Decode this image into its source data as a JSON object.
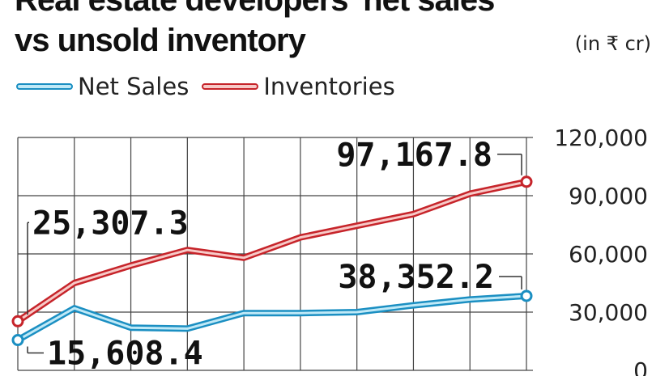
{
  "header": {
    "title_line1": "Real estate developers' net sales",
    "title_line2": "vs unsold inventory",
    "unit": "(in ₹ cr)"
  },
  "legend": [
    {
      "label": "Net Sales",
      "color": "#1b8fc2"
    },
    {
      "label": "Inventories",
      "color": "#c6242a"
    }
  ],
  "chart_data": {
    "type": "line",
    "title": "Real estate developers' net sales vs unsold inventory",
    "unit": "(in ₹ cr)",
    "ylim": [
      0,
      120000
    ],
    "y_ticks": [
      "0",
      "30,000",
      "60,000",
      "90,000",
      "120,000"
    ],
    "y_tick_values": [
      0,
      30000,
      60000,
      90000,
      120000
    ],
    "x": [
      1,
      2,
      3,
      4,
      5,
      6,
      7,
      8,
      9,
      10
    ],
    "grid": true,
    "legend_position": "top-left",
    "series": [
      {
        "name": "Net Sales",
        "color": "#1b8fc2",
        "fill": "#bfe9f7",
        "values": [
          15608.4,
          32000,
          22000,
          21500,
          29500,
          29500,
          30000,
          33500,
          36500,
          38352.2
        ]
      },
      {
        "name": "Inventories",
        "color": "#c6242a",
        "fill": "#f7c9c7",
        "values": [
          25307.3,
          45000,
          54000,
          62000,
          58000,
          68500,
          74500,
          80500,
          91000,
          97167.8
        ]
      }
    ],
    "annotations": [
      {
        "text": "97,167.8",
        "series": "Inventories",
        "point": "last"
      },
      {
        "text": "25,307.3",
        "series": "Inventories",
        "point": "first"
      },
      {
        "text": "38,352.2",
        "series": "Net Sales",
        "point": "last"
      },
      {
        "text": "15,608.4",
        "series": "Net Sales",
        "point": "first"
      }
    ]
  }
}
